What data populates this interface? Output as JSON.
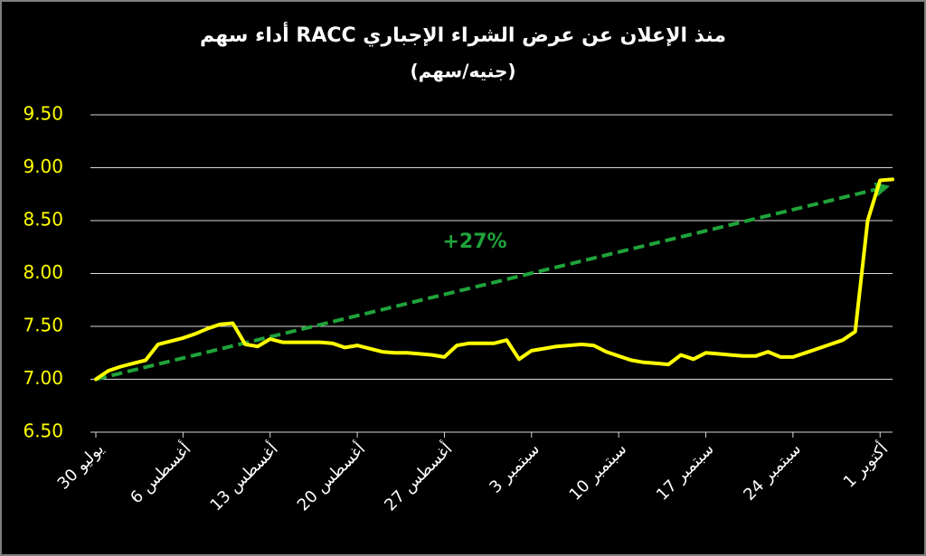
{
  "chart_data": {
    "type": "line",
    "title": "أداء سهم RACC منذ الإعلان عن عرض الشراء الإجباري",
    "subtitle": "(جنيه/سهم)",
    "annotation": "+27%",
    "ylim": [
      6.5,
      9.5
    ],
    "yticks": [
      {
        "value": 6.5,
        "label": "6.50"
      },
      {
        "value": 7,
        "label": "7.00"
      },
      {
        "value": 7.5,
        "label": "7.50"
      },
      {
        "value": 8,
        "label": "8.00"
      },
      {
        "value": 8.5,
        "label": "8.50"
      },
      {
        "value": 9,
        "label": "9.00"
      },
      {
        "value": 9.5,
        "label": "9.50"
      }
    ],
    "xlim": [
      "07-30",
      "10-02"
    ],
    "xticks": [
      {
        "value": "07-30",
        "label": "30 يوليو"
      },
      {
        "value": "08-06",
        "label": "6 أغسطس"
      },
      {
        "value": "08-13",
        "label": "13 أغسطس"
      },
      {
        "value": "08-20",
        "label": "20 أغسطس"
      },
      {
        "value": "08-27",
        "label": "27 أغسطس"
      },
      {
        "value": "09-03",
        "label": "3 سبتمبر"
      },
      {
        "value": "09-10",
        "label": "10 سبتمبر"
      },
      {
        "value": "09-17",
        "label": "17 سبتمبر"
      },
      {
        "value": "09-24",
        "label": "24 سبتمبر"
      },
      {
        "value": "10-01",
        "label": "1 أكتوبر"
      }
    ],
    "grid": true,
    "series": [
      {
        "color": "#ffff00",
        "x": [
          "07-30",
          "07-31",
          "08-01",
          "08-02",
          "08-03",
          "08-04",
          "08-05",
          "08-06",
          "08-07",
          "08-08",
          "08-09",
          "08-10",
          "08-11",
          "08-12",
          "08-13",
          "08-14",
          "08-15",
          "08-16",
          "08-17",
          "08-18",
          "08-19",
          "08-20",
          "08-21",
          "08-22",
          "08-23",
          "08-24",
          "08-25",
          "08-26",
          "08-27",
          "08-28",
          "08-29",
          "08-30",
          "08-31",
          "09-01",
          "09-02",
          "09-03",
          "09-04",
          "09-05",
          "09-06",
          "09-07",
          "09-08",
          "09-09",
          "09-10",
          "09-11",
          "09-12",
          "09-13",
          "09-14",
          "09-15",
          "09-16",
          "09-17",
          "09-18",
          "09-19",
          "09-20",
          "09-21",
          "09-22",
          "09-23",
          "09-24",
          "09-25",
          "09-26",
          "09-27",
          "09-28",
          "09-29",
          "09-30",
          "10-01",
          "10-02"
        ],
        "values": [
          7.0,
          7.08,
          7.12,
          7.15,
          7.18,
          7.33,
          7.36,
          7.39,
          7.43,
          7.48,
          7.52,
          7.53,
          7.33,
          7.31,
          7.38,
          7.35,
          7.35,
          7.35,
          7.35,
          7.34,
          7.3,
          7.32,
          7.29,
          7.26,
          7.25,
          7.25,
          7.24,
          7.23,
          7.21,
          7.32,
          7.34,
          7.34,
          7.34,
          7.37,
          7.19,
          7.27,
          7.29,
          7.31,
          7.32,
          7.33,
          7.32,
          7.26,
          7.22,
          7.18,
          7.16,
          7.15,
          7.14,
          7.23,
          7.19,
          7.25,
          7.24,
          7.23,
          7.22,
          7.22,
          7.26,
          7.21,
          7.21,
          7.25,
          7.29,
          7.33,
          7.37,
          7.45,
          8.5,
          8.88,
          8.89
        ]
      }
    ],
    "trend": {
      "color": "#1fa33a",
      "x": [
        "07-30",
        "10-02"
      ],
      "values": [
        7.0,
        8.82
      ]
    }
  }
}
